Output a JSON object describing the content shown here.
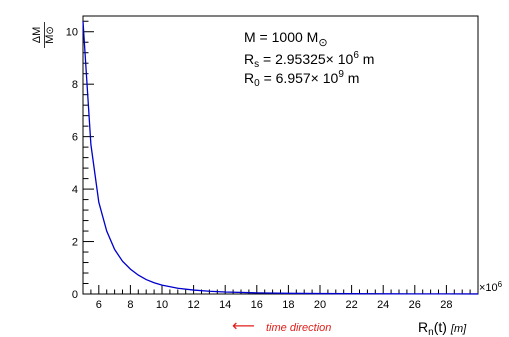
{
  "chart_data": {
    "type": "line",
    "xlim": [
      5,
      30
    ],
    "ylim": [
      0,
      10.6
    ],
    "x_exponent_label": "×10",
    "x_exponent": "6",
    "x_ticks": [
      6,
      8,
      10,
      12,
      14,
      16,
      18,
      20,
      22,
      24,
      26,
      28
    ],
    "y_ticks": [
      0,
      2,
      4,
      6,
      8,
      10
    ],
    "ylabel_numerator": "ΔM",
    "ylabel_denominator": "M",
    "ylabel_denominator_symbol": "⊙",
    "xlabel_main": "R",
    "xlabel_sub": "n",
    "xlabel_rest": "(t)",
    "xlabel_unit": "[m]",
    "direction_arrow": "⟵",
    "direction_text": "time direction",
    "annotation": {
      "mass_prefix": "M = 1000 M",
      "mass_symbol": "⊙",
      "rs_main": "R",
      "rs_sub": "s",
      "rs_value": " = 2.95325× 10",
      "rs_exp": "6",
      "rs_unit": " m",
      "r0_main": "R",
      "r0_sub": "0",
      "r0_value": " =  6.957× 10",
      "r0_exp": "9",
      "r0_unit": " m"
    },
    "series": [
      {
        "color": "#0000cc",
        "x": [
          5.0,
          5.5,
          6.0,
          6.5,
          7.0,
          7.5,
          8.0,
          8.5,
          9.0,
          9.5,
          10.0,
          11.0,
          12.0,
          13.0,
          14.0,
          16.0,
          18.0,
          20.0,
          22.0,
          24.0,
          26.0,
          28.0,
          30.0
        ],
        "y": [
          10.4,
          5.7,
          3.5,
          2.4,
          1.7,
          1.25,
          0.95,
          0.72,
          0.55,
          0.43,
          0.34,
          0.22,
          0.15,
          0.105,
          0.075,
          0.043,
          0.026,
          0.017,
          0.012,
          0.008,
          0.006,
          0.004,
          0.003
        ]
      }
    ]
  }
}
